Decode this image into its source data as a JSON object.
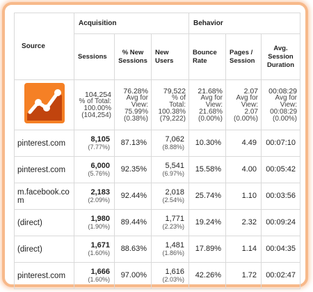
{
  "headers": {
    "source": "Source",
    "acquisition": "Acquisition",
    "behavior": "Behavior",
    "sessions": "Sessions",
    "pct_new_sessions": "% New Sessions",
    "new_users": "New Users",
    "bounce_rate": "Bounce Rate",
    "pages_session": "Pages / Session",
    "avg_session_duration": "Avg. Session Duration"
  },
  "logo_icon": "google-analytics-icon",
  "totals": {
    "sessions": {
      "value": "104,254",
      "l1": "% of Total:",
      "l2": "100.00%",
      "l3": "(104,254)"
    },
    "pct_new_sessions": {
      "value": "76.28%",
      "l1": "Avg for",
      "l2": "View:",
      "l3": "75.99%",
      "l4": "(0.38%)"
    },
    "new_users": {
      "value": "79,522",
      "l1": "% of",
      "l2": "Total:",
      "l3": "100.38%",
      "l4": "(79,222)"
    },
    "bounce_rate": {
      "value": "21.68%",
      "l1": "Avg for",
      "l2": "View:",
      "l3": "21.68%",
      "l4": "(0.00%)"
    },
    "pages_session": {
      "value": "2.07",
      "l1": "Avg for",
      "l2": "View:",
      "l3": "2.07",
      "l4": "(0.00%)"
    },
    "avg_session_duration": {
      "value": "00:08:29",
      "l1": "Avg for",
      "l2": "View:",
      "l3": "00:08:29",
      "l4": "(0.00%)"
    }
  },
  "rows": [
    {
      "source": "pinterest.com",
      "sessions": "8,105",
      "sessions_pct": "(7.77%)",
      "pct_new": "87.13%",
      "new_users": "7,062",
      "new_users_pct": "(8.88%)",
      "bounce": "10.30%",
      "pages": "4.49",
      "duration": "00:07:10"
    },
    {
      "source": "pinterest.com",
      "sessions": "6,000",
      "sessions_pct": "(5.76%)",
      "pct_new": "92.35%",
      "new_users": "5,541",
      "new_users_pct": "(6.97%)",
      "bounce": "15.58%",
      "pages": "4.00",
      "duration": "00:05:42"
    },
    {
      "source": "m.facebook.co m",
      "sessions": "2,183",
      "sessions_pct": "(2.09%)",
      "pct_new": "92.44%",
      "new_users": "2,018",
      "new_users_pct": "(2.54%)",
      "bounce": "25.74%",
      "pages": "1.10",
      "duration": "00:03:56"
    },
    {
      "source": "(direct)",
      "sessions": "1,980",
      "sessions_pct": "(1.90%)",
      "pct_new": "89.44%",
      "new_users": "1,771",
      "new_users_pct": "(2.23%)",
      "bounce": "19.24%",
      "pages": "2.32",
      "duration": "00:09:24"
    },
    {
      "source": "(direct)",
      "sessions": "1,671",
      "sessions_pct": "(1.60%)",
      "pct_new": "88.63%",
      "new_users": "1,481",
      "new_users_pct": "(1.86%)",
      "bounce": "17.89%",
      "pages": "1.14",
      "duration": "00:04:35"
    },
    {
      "source": "pinterest.com",
      "sessions": "1,666",
      "sessions_pct": "(1.60%)",
      "pct_new": "97.00%",
      "new_users": "1,616",
      "new_users_pct": "(2.03%)",
      "bounce": "42.26%",
      "pages": "1.72",
      "duration": "00:02:47"
    }
  ]
}
